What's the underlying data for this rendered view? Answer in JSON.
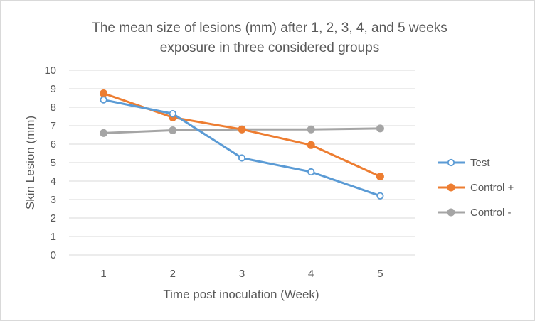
{
  "chart_data": {
    "type": "line",
    "title_lines": [
      "The mean size of lesions (mm) after 1, 2, 3, 4, and 5 weeks",
      "exposure in three considered groups"
    ],
    "xlabel": "Time post inoculation (Week)",
    "ylabel": "Skin Lesion (mm)",
    "categories": [
      "1",
      "2",
      "3",
      "4",
      "5"
    ],
    "ylim": [
      0,
      10
    ],
    "yticks": [
      "0",
      "1",
      "2",
      "3",
      "4",
      "5",
      "6",
      "7",
      "8",
      "9",
      "10"
    ],
    "grid": true,
    "legend_position": "right",
    "series": [
      {
        "name": "Test",
        "values": [
          8.4,
          7.65,
          5.25,
          4.5,
          3.2
        ],
        "color": "#5b9bd5",
        "marker": "hollow-circle"
      },
      {
        "name": "Control +",
        "values": [
          8.75,
          7.45,
          6.8,
          5.95,
          4.25
        ],
        "color": "#ed7d31",
        "marker": "filled-circle"
      },
      {
        "name": "Control -",
        "values": [
          6.6,
          6.75,
          6.8,
          6.8,
          6.85
        ],
        "color": "#a5a5a5",
        "marker": "filled-circle"
      }
    ]
  }
}
